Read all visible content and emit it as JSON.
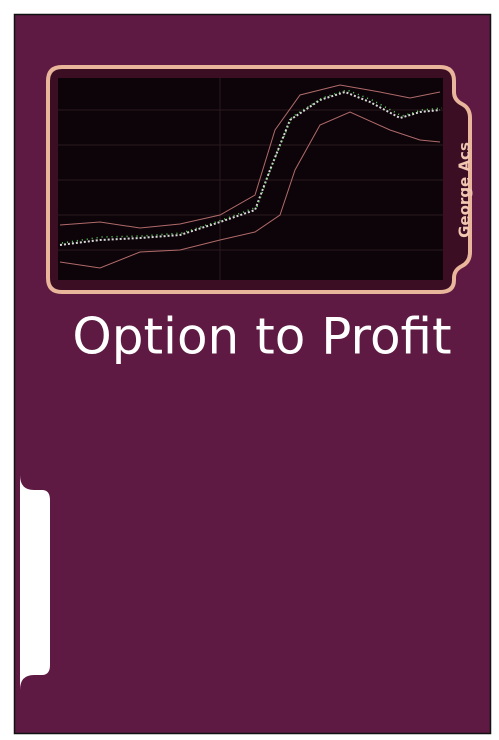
{
  "cover": {
    "title": "Option to Profit",
    "author": "George Acs"
  }
}
